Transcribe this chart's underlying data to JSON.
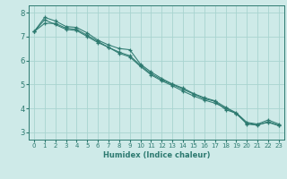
{
  "xlabel": "Humidex (Indice chaleur)",
  "bg_color": "#ceeae8",
  "grid_color": "#a8d4d0",
  "line_color": "#2d7a70",
  "spine_color": "#2d7a70",
  "xlim": [
    -0.5,
    23.5
  ],
  "ylim": [
    2.7,
    8.3
  ],
  "yticks": [
    3,
    4,
    5,
    6,
    7,
    8
  ],
  "xticks": [
    0,
    1,
    2,
    3,
    4,
    5,
    6,
    7,
    8,
    9,
    10,
    11,
    12,
    13,
    14,
    15,
    16,
    17,
    18,
    19,
    20,
    21,
    22,
    23
  ],
  "line1_x": [
    0,
    1,
    2,
    3,
    4,
    5,
    6,
    7,
    8,
    9,
    10,
    11,
    12,
    13,
    14,
    15,
    16,
    17,
    18,
    19,
    20,
    21,
    22,
    23
  ],
  "line1_y": [
    7.2,
    7.7,
    7.5,
    7.3,
    7.25,
    7.0,
    6.75,
    6.55,
    6.35,
    6.2,
    5.8,
    5.45,
    5.2,
    5.0,
    4.8,
    4.6,
    4.4,
    4.3,
    3.95,
    3.8,
    3.35,
    3.3,
    3.45,
    3.3
  ],
  "line2_x": [
    0,
    1,
    2,
    3,
    4,
    5,
    6,
    7,
    8,
    9,
    10,
    11,
    12,
    13,
    14,
    15,
    16,
    17,
    18,
    19,
    20,
    21,
    22,
    23
  ],
  "line2_y": [
    7.2,
    7.55,
    7.55,
    7.35,
    7.3,
    7.05,
    6.8,
    6.55,
    6.3,
    6.15,
    5.75,
    5.4,
    5.15,
    4.95,
    4.72,
    4.52,
    4.35,
    4.22,
    4.02,
    3.78,
    3.38,
    3.32,
    3.42,
    3.28
  ],
  "line3_x": [
    0,
    1,
    2,
    3,
    4,
    5,
    6,
    7,
    8,
    9,
    10,
    11,
    12,
    13,
    14,
    15,
    16,
    17,
    18,
    19,
    20,
    21,
    22,
    23
  ],
  "line3_y": [
    7.2,
    7.8,
    7.65,
    7.42,
    7.38,
    7.15,
    6.85,
    6.65,
    6.5,
    6.45,
    5.85,
    5.52,
    5.25,
    5.02,
    4.85,
    4.62,
    4.45,
    4.32,
    4.05,
    3.82,
    3.42,
    3.35,
    3.52,
    3.35
  ],
  "xlabel_fontsize": 6,
  "tick_fontsize_x": 5,
  "tick_fontsize_y": 6
}
